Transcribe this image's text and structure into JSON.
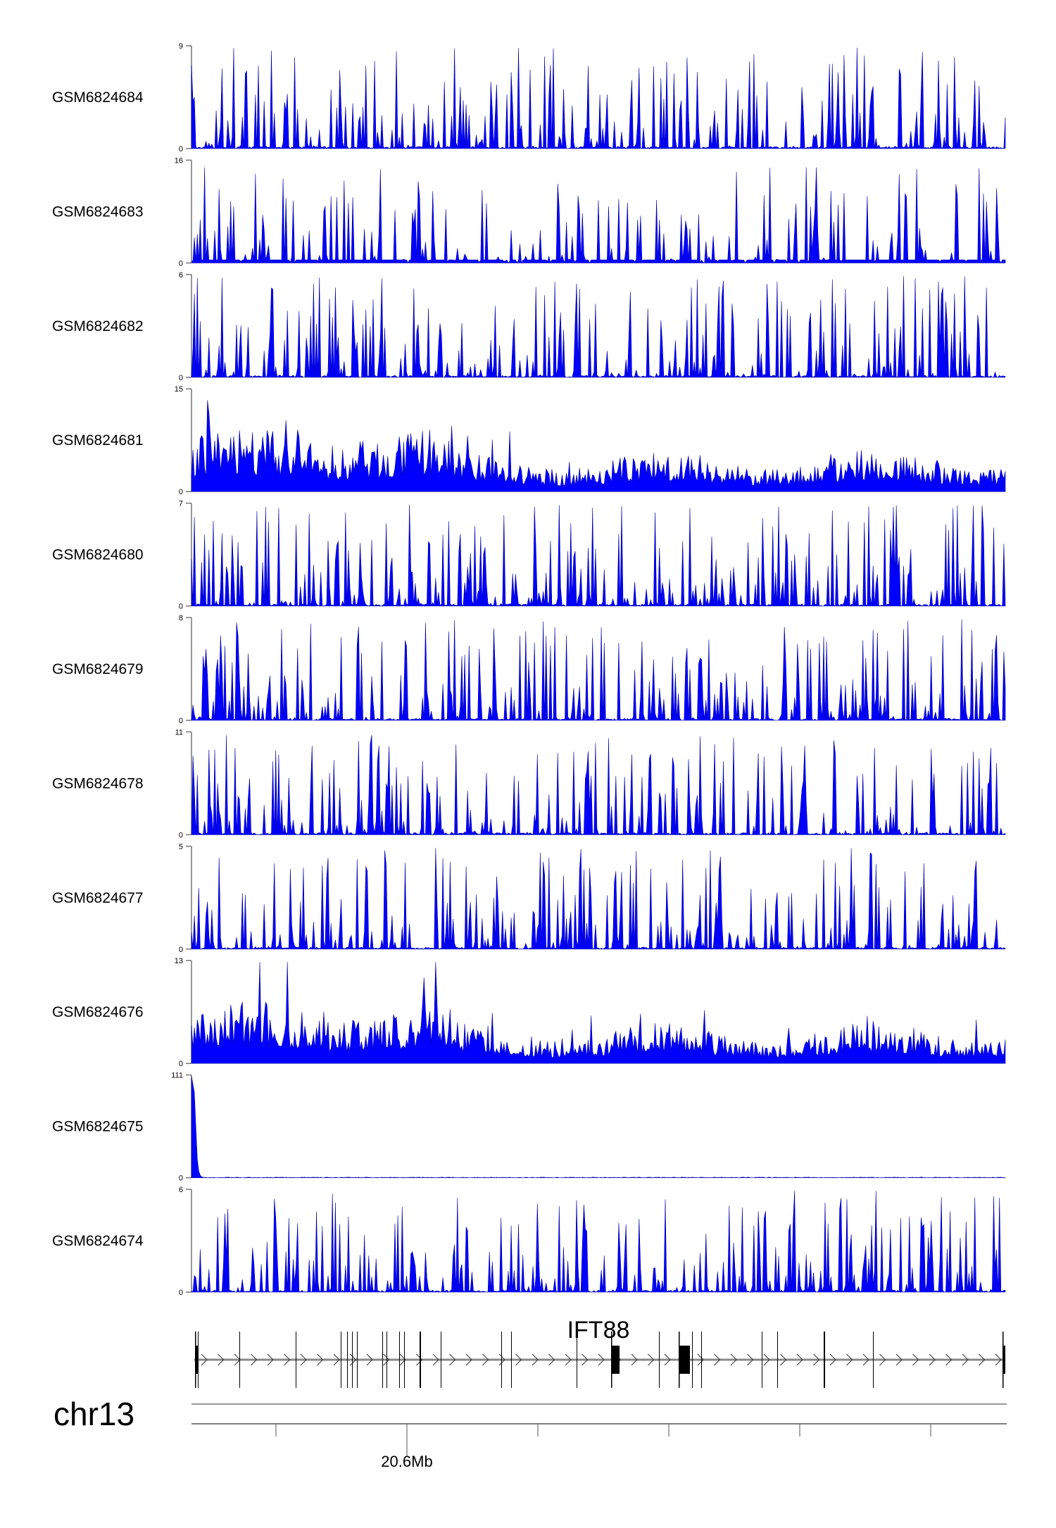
{
  "chart_data": {
    "type": "area",
    "title": "",
    "fill_color": "#0000ff",
    "tracks": [
      {
        "name": "GSM6824684",
        "ylim": [
          0,
          9
        ],
        "style": "spiky"
      },
      {
        "name": "GSM6824683",
        "ylim": [
          0,
          16
        ],
        "style": "sparse"
      },
      {
        "name": "GSM6824682",
        "ylim": [
          0,
          6
        ],
        "style": "spiky"
      },
      {
        "name": "GSM6824681",
        "ylim": [
          0,
          15
        ],
        "style": "dense"
      },
      {
        "name": "GSM6824680",
        "ylim": [
          0,
          7
        ],
        "style": "spiky"
      },
      {
        "name": "GSM6824679",
        "ylim": [
          0,
          8
        ],
        "style": "spiky"
      },
      {
        "name": "GSM6824678",
        "ylim": [
          0,
          11
        ],
        "style": "spiky"
      },
      {
        "name": "GSM6824677",
        "ylim": [
          0,
          5
        ],
        "style": "spiky"
      },
      {
        "name": "GSM6824676",
        "ylim": [
          0,
          13
        ],
        "style": "dense"
      },
      {
        "name": "GSM6824675",
        "ylim": [
          0,
          111
        ],
        "style": "single"
      },
      {
        "name": "GSM6824674",
        "ylim": [
          0,
          6
        ],
        "style": "spiky"
      }
    ],
    "gene": {
      "name": "IFT88",
      "strand": "+"
    },
    "chromosome": "chr13",
    "xaxis": {
      "tick_label": "20.6Mb",
      "tick_count": 6
    }
  }
}
